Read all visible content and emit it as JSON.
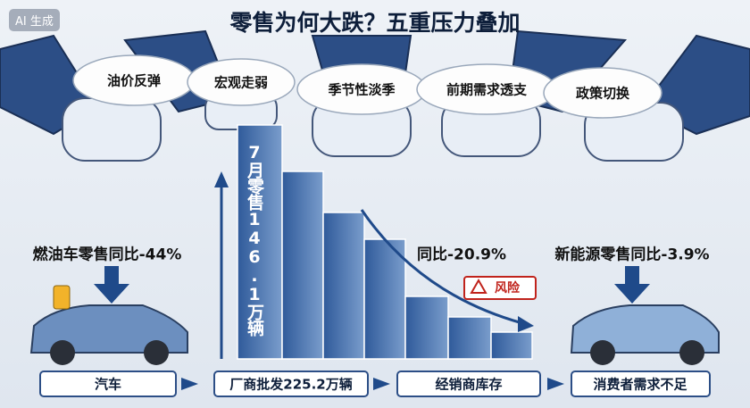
{
  "badge": "AI 生成",
  "title": "零售为何大跌？五重压力叠加",
  "pressures": [
    "油价反弹",
    "宏观走弱",
    "季节性淡季",
    "前期需求透支",
    "政策切换"
  ],
  "left_stat": "燃油车零售同比-44%",
  "middle_stat": "同比-20.9%",
  "right_stat": "新能源零售同比-3.9%",
  "risk": "风险",
  "bar_label": "7月零售146.1万辆",
  "flow": [
    "汽车",
    "厂商批发225.2万辆",
    "经销商库存",
    "消费者需求不足"
  ]
}
